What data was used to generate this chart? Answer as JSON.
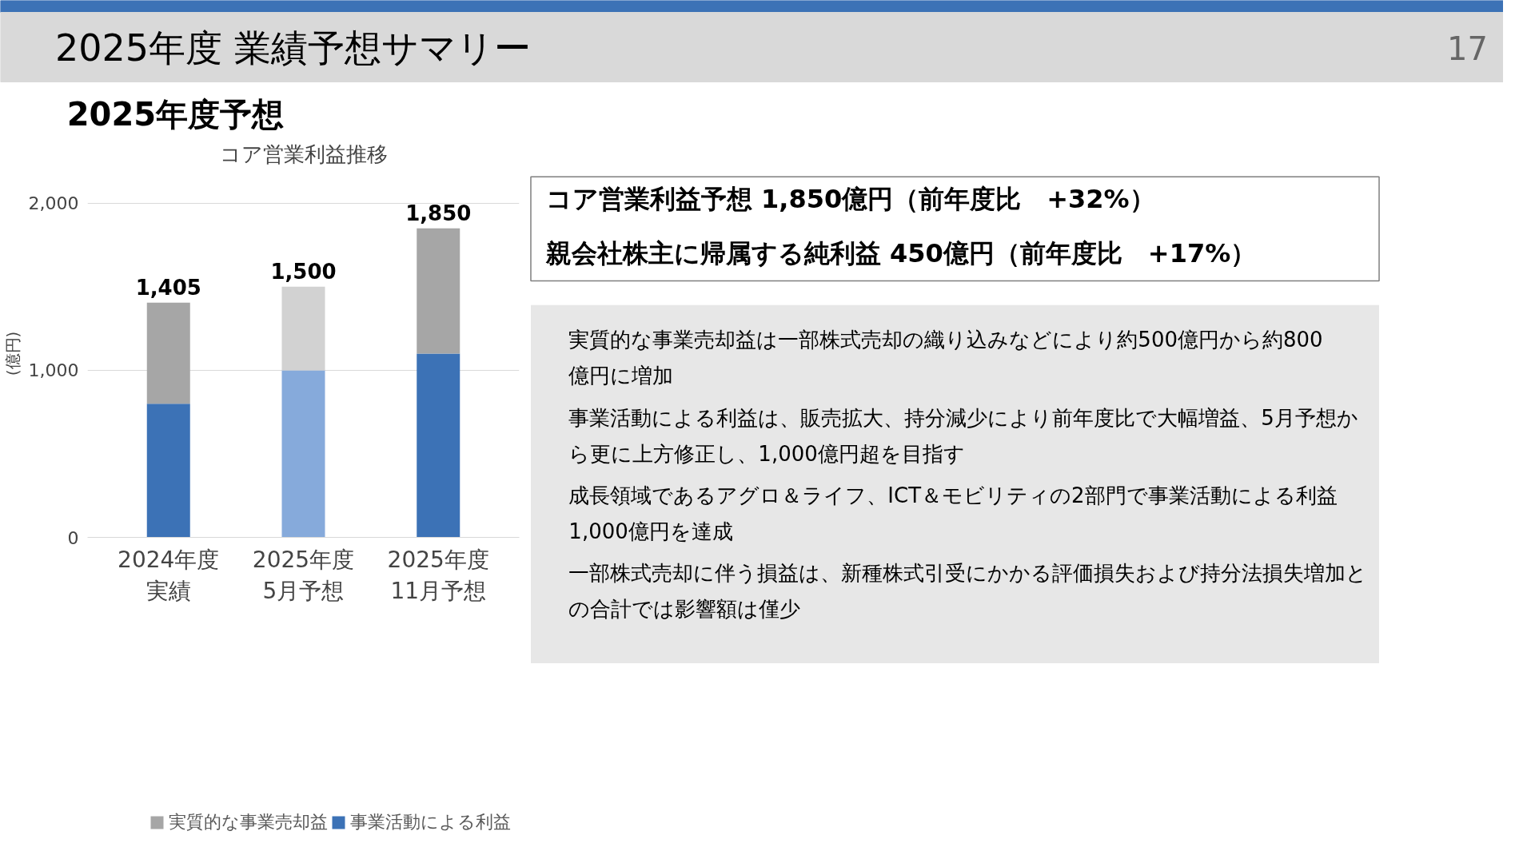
{
  "chart_data": [
    {
      "type": "other",
      "title": "2025年度 業績予想サマリー",
      "subtitle": "2025年度予想",
      "annotations": [
        "17"
      ]
    },
    {
      "type": "bar",
      "title": "コア営業利益推移",
      "ylabel": "(億円)",
      "stacked": true,
      "categories": [
        "2024年度実績",
        "2025年度5月予想",
        "2025年度11月予想"
      ],
      "series": [
        {
          "name": "事業活動による利益",
          "colors": [
            "#3c72b6",
            "#86aadb",
            "#3c72b6"
          ],
          "values": [
            800,
            1000,
            1100
          ]
        },
        {
          "name": "実質的な事業売却益",
          "colors": [
            "#a6a6a6",
            "#d2d2d2",
            "#a6a6a6"
          ],
          "values": [
            605,
            500,
            750
          ]
        }
      ],
      "totals": [
        "1,405",
        "1,500",
        "1,850"
      ],
      "ylim": [
        0,
        2000
      ],
      "yticks": [
        0,
        {
          "value": 1000,
          "label": "1,000"
        },
        {
          "value": 2000,
          "label": "2,000"
        }
      ],
      "grid": "y",
      "legend": "bottom"
    },
    {
      "type": "other",
      "annotations": [
        "コア営業利益予想 1,850億円（前年度比　+32%）",
        "親会社株主に帰属する純利益 450億円（前年度比　+17%）",
        "実質的な事業売却益は一部株式売却の織り込みなどにより約500億円から約800億円に増加",
        "事業活動による利益は、販売拡大、持分減少により前年度比で大幅増益、5月予想から更に上方修正し、1,000億円超を目指す",
        "成長領域であるアグロ＆ライフ、ICT＆モビリティの2部門で事業活動による利益1,000億円を達成",
        "一部株式売却に伴う損益は、新種株式引受にかかる評価損失および持分法損失増加との合計では影響額は僅少"
      ]
    }
  ]
}
